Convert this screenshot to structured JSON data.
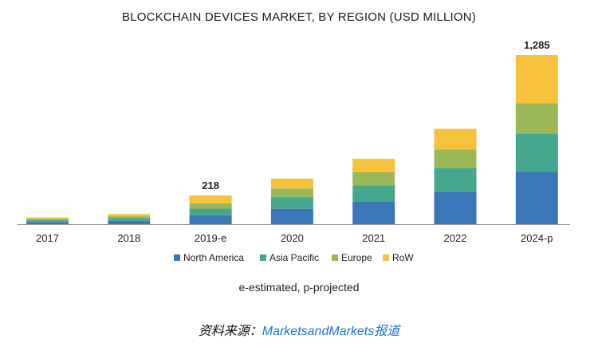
{
  "chart_data": {
    "type": "bar",
    "stacked": true,
    "title": "BLOCKCHAIN DEVICES MARKET, BY REGION (USD MILLION)",
    "categories": [
      "2017",
      "2018",
      "2019-e",
      "2020",
      "2021",
      "2022",
      "2024-p"
    ],
    "series": [
      {
        "name": "North America",
        "color": "#3b76b8",
        "values": [
          17,
          26,
          68,
          117,
          170,
          245,
          397
        ]
      },
      {
        "name": "Asia Pacific",
        "color": "#45a78e",
        "values": [
          13,
          19,
          50,
          86,
          125,
          180,
          292
        ]
      },
      {
        "name": "Europe",
        "color": "#9ab858",
        "values": [
          10,
          15,
          40,
          68,
          99,
          142,
          231
        ]
      },
      {
        "name": "RoW",
        "color": "#f6c23c",
        "values": [
          11,
          17,
          60,
          75,
          102,
          157,
          365
        ]
      }
    ],
    "totals": [
      51,
      77,
      218,
      346,
      496,
      724,
      1285
    ],
    "data_labels": {
      "2019-e": "218",
      "2024-p": "1,285"
    },
    "ylim": [
      0,
      1285
    ],
    "grid": false,
    "legend_position": "bottom"
  },
  "footnote": "e-estimated, p-projected",
  "source": {
    "prefix": "资料来源：",
    "brand": "MarketsandMarkets报道"
  }
}
